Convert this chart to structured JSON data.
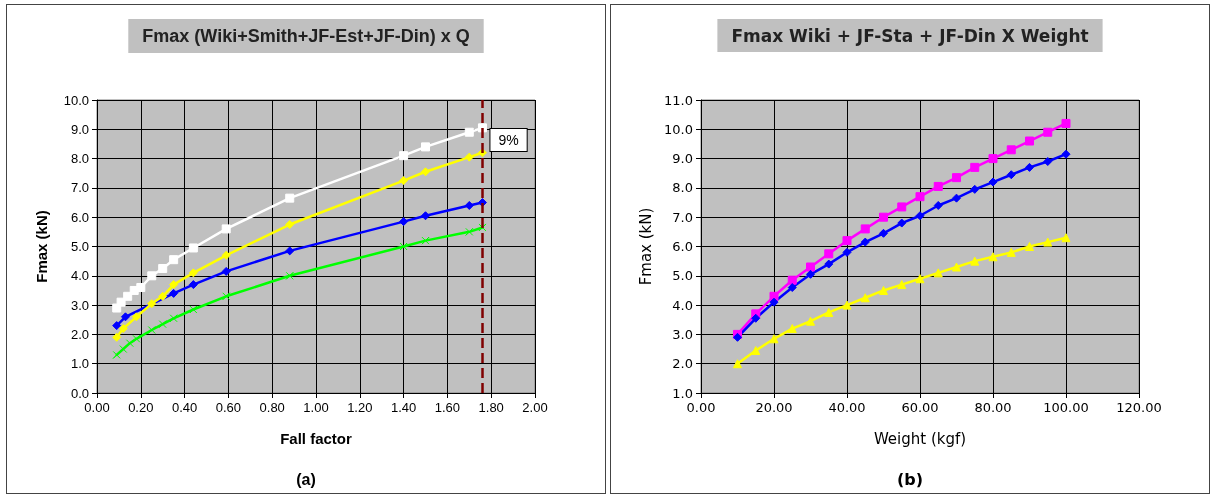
{
  "chart_data": [
    {
      "type": "line",
      "title": "Fmax (Wiki+Smith+JF-Est+JF-Din) x Q",
      "xlabel": "Fall factor",
      "ylabel": "Fmax (kN)",
      "xlim": [
        0,
        2
      ],
      "ylim": [
        0,
        10
      ],
      "xticks": [
        {
          "value": 0,
          "label": "0.00"
        },
        {
          "value": 0.2,
          "label": "0.20"
        },
        {
          "value": 0.4,
          "label": "0.40"
        },
        {
          "value": 0.6,
          "label": "0.60"
        },
        {
          "value": 0.8,
          "label": "0.80"
        },
        {
          "value": 1,
          "label": "1.00"
        },
        {
          "value": 1.2,
          "label": "1.20"
        },
        {
          "value": 1.4,
          "label": "1.40"
        },
        {
          "value": 1.6,
          "label": "1.60"
        },
        {
          "value": 1.8,
          "label": "1.80"
        },
        {
          "value": 2,
          "label": "2.00"
        }
      ],
      "yticks": [
        {
          "value": 0,
          "label": "0.0"
        },
        {
          "value": 1,
          "label": "1.0"
        },
        {
          "value": 2,
          "label": "2.0"
        },
        {
          "value": 3,
          "label": "3.0"
        },
        {
          "value": 4,
          "label": "4.0"
        },
        {
          "value": 5,
          "label": "5.0"
        },
        {
          "value": 6,
          "label": "6.0"
        },
        {
          "value": 7,
          "label": "7.0"
        },
        {
          "value": 8,
          "label": "8.0"
        },
        {
          "value": 9,
          "label": "9.0"
        },
        {
          "value": 10,
          "label": "10.0"
        }
      ],
      "grid": true,
      "line_style": "solid",
      "series": [
        {
          "color": "#ffffff",
          "marker": "square",
          "x": [
            0.09,
            0.11,
            0.14,
            0.17,
            0.2,
            0.25,
            0.3,
            0.35,
            0.44,
            0.59,
            0.88,
            1.4,
            1.5,
            1.7,
            1.76
          ],
          "values": [
            2.9,
            3.1,
            3.3,
            3.5,
            3.6,
            4.0,
            4.25,
            4.55,
            4.95,
            5.6,
            6.65,
            8.1,
            8.4,
            8.9,
            9.05
          ]
        },
        {
          "color": "#0000ff",
          "marker": "diamond",
          "x": [
            0.09,
            0.13,
            0.35,
            0.44,
            0.59,
            0.88,
            1.4,
            1.5,
            1.7,
            1.76
          ],
          "values": [
            2.3,
            2.6,
            3.4,
            3.7,
            4.15,
            4.85,
            5.85,
            6.05,
            6.4,
            6.5
          ]
        },
        {
          "color": "#00ff00",
          "marker": "cross",
          "x": [
            0.09,
            0.12,
            0.15,
            0.18,
            0.25,
            0.3,
            0.35,
            0.44,
            0.59,
            0.88,
            1.4,
            1.5,
            1.7,
            1.76
          ],
          "values": [
            1.3,
            1.5,
            1.7,
            1.85,
            2.15,
            2.35,
            2.55,
            2.85,
            3.3,
            4.0,
            5.0,
            5.2,
            5.5,
            5.65
          ]
        },
        {
          "color": "#ffff00",
          "marker": "diamond",
          "x": [
            0.09,
            0.12,
            0.18,
            0.25,
            0.3,
            0.35,
            0.44,
            0.59,
            0.88,
            1.4,
            1.5,
            1.7,
            1.76
          ],
          "values": [
            1.9,
            2.2,
            2.6,
            3.05,
            3.3,
            3.7,
            4.1,
            4.7,
            5.75,
            7.25,
            7.55,
            8.05,
            8.2
          ]
        }
      ],
      "ref_lines": [
        {
          "axis": "x",
          "value": 1.76,
          "color": "#800000",
          "line_style": "dashed"
        }
      ],
      "annotations": [
        {
          "text": "9%",
          "x": 1.76,
          "y": 8.6
        },
        "(a)"
      ]
    },
    {
      "type": "line",
      "title": "Fmax Wiki + JF-Sta + JF-Din X Weight",
      "xlabel": "Weight (kgf)",
      "ylabel": "Fmax (kN)",
      "xlim": [
        0,
        120
      ],
      "ylim": [
        1,
        11
      ],
      "xticks": [
        {
          "value": 0,
          "label": "0.00"
        },
        {
          "value": 20,
          "label": "20.00"
        },
        {
          "value": 40,
          "label": "40.00"
        },
        {
          "value": 60,
          "label": "60.00"
        },
        {
          "value": 80,
          "label": "80.00"
        },
        {
          "value": 100,
          "label": "100.00"
        },
        {
          "value": 120,
          "label": "120.00"
        }
      ],
      "yticks": [
        {
          "value": 1,
          "label": "1.0"
        },
        {
          "value": 2,
          "label": "2.0"
        },
        {
          "value": 3,
          "label": "3.0"
        },
        {
          "value": 4,
          "label": "4.0"
        },
        {
          "value": 5,
          "label": "5.0"
        },
        {
          "value": 6,
          "label": "6.0"
        },
        {
          "value": 7,
          "label": "7.0"
        },
        {
          "value": 8,
          "label": "8.0"
        },
        {
          "value": 9,
          "label": "9.0"
        },
        {
          "value": 10,
          "label": "10.0"
        },
        {
          "value": 11,
          "label": "11.0"
        }
      ],
      "grid": true,
      "line_style": "solid",
      "series": [
        {
          "color": "#ff00ff",
          "marker": "square",
          "x": [
            10,
            15,
            20,
            25,
            30,
            35,
            40,
            45,
            50,
            55,
            60,
            65,
            70,
            75,
            80,
            85,
            90,
            95,
            100
          ],
          "values": [
            3.0,
            3.7,
            4.3,
            4.85,
            5.3,
            5.75,
            6.2,
            6.6,
            7.0,
            7.35,
            7.7,
            8.05,
            8.35,
            8.7,
            9.0,
            9.3,
            9.6,
            9.9,
            10.2
          ]
        },
        {
          "color": "#0000ff",
          "marker": "diamond",
          "x": [
            10,
            15,
            20,
            25,
            30,
            35,
            40,
            45,
            50,
            55,
            60,
            65,
            70,
            75,
            80,
            85,
            90,
            95,
            100
          ],
          "values": [
            2.9,
            3.55,
            4.1,
            4.6,
            5.05,
            5.4,
            5.8,
            6.15,
            6.45,
            6.8,
            7.05,
            7.4,
            7.65,
            7.95,
            8.2,
            8.45,
            8.7,
            8.9,
            9.15
          ]
        },
        {
          "color": "#ffff00",
          "marker": "triangle",
          "x": [
            10,
            15,
            20,
            25,
            30,
            35,
            40,
            45,
            50,
            55,
            60,
            65,
            70,
            75,
            80,
            85,
            90,
            95,
            100
          ],
          "values": [
            2.0,
            2.45,
            2.85,
            3.2,
            3.45,
            3.75,
            4.0,
            4.25,
            4.5,
            4.7,
            4.9,
            5.1,
            5.3,
            5.5,
            5.65,
            5.8,
            6.0,
            6.15,
            6.3
          ]
        }
      ],
      "annotations": [
        "(b)"
      ]
    }
  ]
}
